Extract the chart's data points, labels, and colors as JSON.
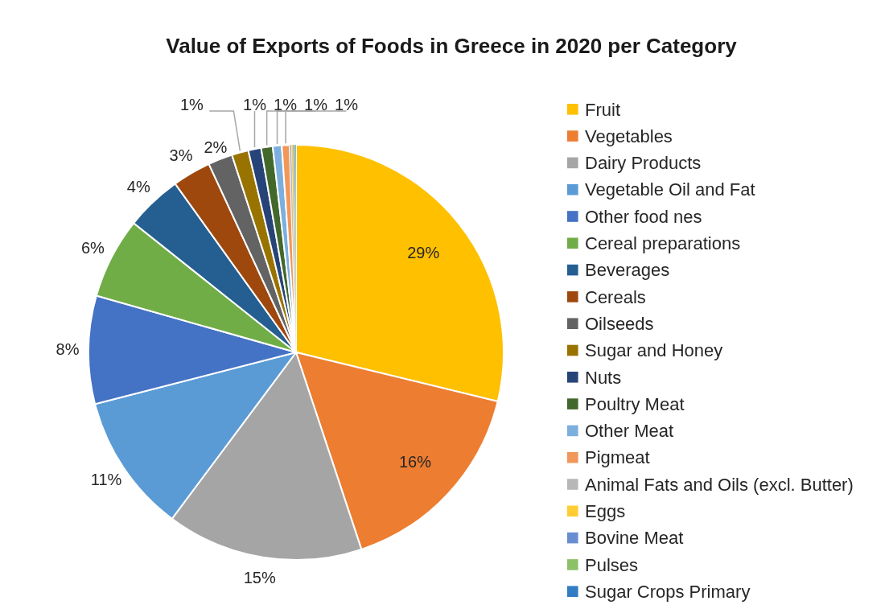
{
  "chart_data": {
    "type": "pie",
    "title": "Value of Exports of Foods in Greece in 2020 per Category",
    "categories": [
      "Fruit",
      "Vegetables",
      "Dairy Products",
      "Vegetable Oil and Fat",
      "Other food nes",
      "Cereal preparations",
      "Beverages",
      "Cereals",
      "Oilseeds",
      "Sugar and Honey",
      "Nuts",
      "Poultry Meat",
      "Other Meat",
      "Pigmeat",
      "Animal Fats and Oils (excl. Butter)",
      "Eggs",
      "Bovine Meat",
      "Pulses",
      "Sugar Crops Primary"
    ],
    "values": [
      28.8,
      16.1,
      15.3,
      10.8,
      8.4,
      6.3,
      4.4,
      3.0,
      1.9,
      1.3,
      1.0,
      0.9,
      0.7,
      0.6,
      0.15,
      0.12,
      0.1,
      0.08,
      0.05
    ],
    "colors": [
      "#ffc000",
      "#ed7d31",
      "#a5a5a5",
      "#5b9bd5",
      "#4472c4",
      "#70ad47",
      "#255e91",
      "#9e480e",
      "#636363",
      "#997300",
      "#264478",
      "#43682b",
      "#7cafdd",
      "#f1975a",
      "#b7b7b7",
      "#ffcd33",
      "#698ed0",
      "#8cc168",
      "#327dc2"
    ],
    "value_labels": [
      "29%",
      "16%",
      "15%",
      "11%",
      "8%",
      "6%",
      "4%",
      "3%",
      "2%",
      "1%",
      "1%",
      "1%",
      "1%",
      "1%",
      null,
      null,
      null,
      null,
      null
    ],
    "legend": "right"
  }
}
